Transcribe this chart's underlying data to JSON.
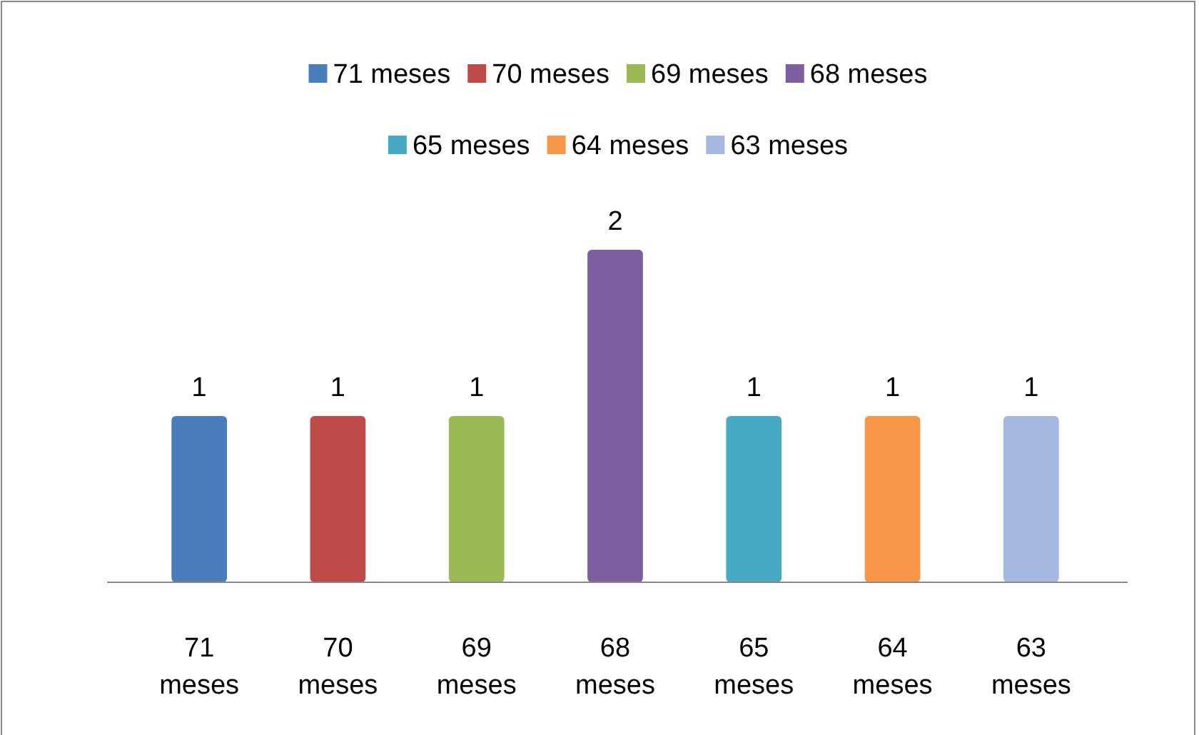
{
  "chart_data": {
    "type": "bar",
    "categories": [
      "71 meses",
      "70 meses",
      "69 meses",
      "68 meses",
      "65 meses",
      "64 meses",
      "63 meses"
    ],
    "series": [
      {
        "name": "71 meses",
        "color": "#4a7ebb",
        "values": [
          1,
          null,
          null,
          null,
          null,
          null,
          null
        ]
      },
      {
        "name": "70 meses",
        "color": "#be4b48",
        "values": [
          null,
          1,
          null,
          null,
          null,
          null,
          null
        ]
      },
      {
        "name": "69 meses",
        "color": "#98b954",
        "values": [
          null,
          null,
          1,
          null,
          null,
          null,
          null
        ]
      },
      {
        "name": "68 meses",
        "color": "#7d5fa0",
        "values": [
          null,
          null,
          null,
          2,
          null,
          null,
          null
        ]
      },
      {
        "name": "65 meses",
        "color": "#46aac5",
        "values": [
          null,
          null,
          null,
          null,
          1,
          null,
          null
        ]
      },
      {
        "name": "64 meses",
        "color": "#f79646",
        "values": [
          null,
          null,
          null,
          null,
          null,
          1,
          null
        ]
      },
      {
        "name": "63 meses",
        "color": "#a5b9e0",
        "values": [
          null,
          null,
          null,
          null,
          null,
          null,
          1
        ]
      }
    ],
    "data_labels": true,
    "legend": "top",
    "tick_labels": "x"
  }
}
